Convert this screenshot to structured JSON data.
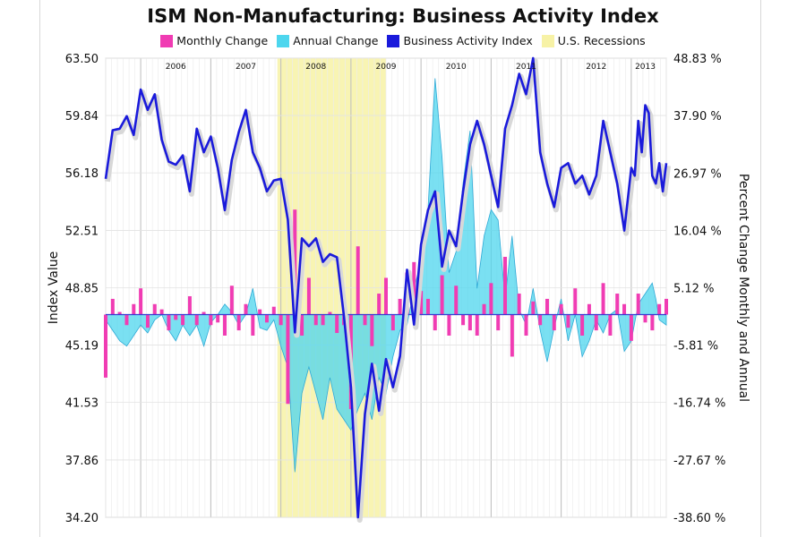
{
  "chart_data": {
    "type": "line",
    "title": "ISM Non-Manufacturing: Business Activity Index",
    "ylabel_left": "Index Value",
    "ylabel_right": "Percent Change Monthly and Annual",
    "left_axis": {
      "ticks": [
        "63.50",
        "59.84",
        "56.18",
        "52.51",
        "48.85",
        "45.19",
        "41.53",
        "37.86",
        "34.20"
      ],
      "min": 34.2,
      "max": 63.5
    },
    "right_axis": {
      "ticks": [
        "48.83 %",
        "37.90 %",
        "26.97 %",
        "16.04 %",
        "5.12 %",
        "-5.81 %",
        "-16.74 %",
        "-27.67 %",
        "-38.60 %"
      ],
      "min": -38.6,
      "max": 48.83
    },
    "x_range": [
      2005.5,
      2013.5
    ],
    "year_labels": [
      {
        "label": "2006",
        "x": 2006.5
      },
      {
        "label": "2007",
        "x": 2007.5
      },
      {
        "label": "2008",
        "x": 2008.5
      },
      {
        "label": "2009",
        "x": 2009.5
      },
      {
        "label": "2010",
        "x": 2010.5
      },
      {
        "label": "2011",
        "x": 2011.5
      },
      {
        "label": "2012",
        "x": 2012.5
      },
      {
        "label": "2013",
        "x": 2013.2
      }
    ],
    "recession": {
      "name": "U.S. Recessions",
      "start": 2007.95,
      "end": 2009.5,
      "color": "#f7f2a6"
    },
    "series": [
      {
        "name": "Business Activity Index",
        "axis": "left",
        "color": "#1a1adb",
        "values": [
          [
            2005.5,
            55.8
          ],
          [
            2005.6,
            58.9
          ],
          [
            2005.7,
            59.0
          ],
          [
            2005.8,
            59.8
          ],
          [
            2005.9,
            58.6
          ],
          [
            2006.0,
            61.5
          ],
          [
            2006.1,
            60.2
          ],
          [
            2006.2,
            61.2
          ],
          [
            2006.3,
            58.3
          ],
          [
            2006.4,
            56.9
          ],
          [
            2006.5,
            56.7
          ],
          [
            2006.6,
            57.3
          ],
          [
            2006.7,
            55.0
          ],
          [
            2006.8,
            59.0
          ],
          [
            2006.9,
            57.5
          ],
          [
            2007.0,
            58.5
          ],
          [
            2007.1,
            56.5
          ],
          [
            2007.2,
            53.8
          ],
          [
            2007.3,
            57.0
          ],
          [
            2007.4,
            58.8
          ],
          [
            2007.5,
            60.2
          ],
          [
            2007.6,
            57.5
          ],
          [
            2007.7,
            56.5
          ],
          [
            2007.8,
            55.0
          ],
          [
            2007.9,
            55.7
          ],
          [
            2008.0,
            55.8
          ],
          [
            2008.1,
            53.2
          ],
          [
            2008.2,
            46.0
          ],
          [
            2008.3,
            52.0
          ],
          [
            2008.4,
            51.5
          ],
          [
            2008.5,
            52.0
          ],
          [
            2008.6,
            50.5
          ],
          [
            2008.7,
            51.0
          ],
          [
            2008.8,
            50.8
          ],
          [
            2008.9,
            47.0
          ],
          [
            2009.0,
            42.5
          ],
          [
            2009.1,
            34.2
          ],
          [
            2009.2,
            40.8
          ],
          [
            2009.3,
            44.0
          ],
          [
            2009.4,
            41.0
          ],
          [
            2009.5,
            44.3
          ],
          [
            2009.6,
            42.5
          ],
          [
            2009.7,
            44.5
          ],
          [
            2009.8,
            50.0
          ],
          [
            2009.9,
            46.5
          ],
          [
            2010.0,
            51.6
          ],
          [
            2010.1,
            53.8
          ],
          [
            2010.2,
            55.0
          ],
          [
            2010.3,
            50.2
          ],
          [
            2010.4,
            52.5
          ],
          [
            2010.5,
            51.5
          ],
          [
            2010.6,
            55.0
          ],
          [
            2010.7,
            58.0
          ],
          [
            2010.8,
            59.5
          ],
          [
            2010.9,
            58.0
          ],
          [
            2011.0,
            56.0
          ],
          [
            2011.1,
            54.0
          ],
          [
            2011.2,
            59.0
          ],
          [
            2011.3,
            60.5
          ],
          [
            2011.4,
            62.5
          ],
          [
            2011.5,
            61.2
          ],
          [
            2011.6,
            63.5
          ],
          [
            2011.7,
            57.5
          ],
          [
            2011.8,
            55.5
          ],
          [
            2011.9,
            54.0
          ],
          [
            2012.0,
            56.5
          ],
          [
            2012.1,
            56.8
          ],
          [
            2012.2,
            55.5
          ],
          [
            2012.3,
            56.0
          ],
          [
            2012.4,
            54.8
          ],
          [
            2012.5,
            56.0
          ],
          [
            2012.6,
            59.5
          ],
          [
            2012.7,
            57.5
          ],
          [
            2012.8,
            55.5
          ],
          [
            2012.9,
            52.5
          ],
          [
            2013.0,
            56.5
          ],
          [
            2013.05,
            56.0
          ],
          [
            2013.1,
            59.5
          ],
          [
            2013.15,
            57.5
          ],
          [
            2013.2,
            60.5
          ],
          [
            2013.25,
            60.0
          ],
          [
            2013.3,
            56.0
          ],
          [
            2013.35,
            55.5
          ],
          [
            2013.4,
            56.8
          ],
          [
            2013.45,
            55.0
          ],
          [
            2013.5,
            56.8
          ]
        ]
      },
      {
        "name": "Annual Change",
        "axis": "right",
        "color": "#4dd6ee",
        "values": [
          [
            2005.5,
            -1.0
          ],
          [
            2005.6,
            -3.0
          ],
          [
            2005.7,
            -5.0
          ],
          [
            2005.8,
            -6.0
          ],
          [
            2005.9,
            -4.0
          ],
          [
            2006.0,
            -2.0
          ],
          [
            2006.1,
            -3.5
          ],
          [
            2006.2,
            -1.0
          ],
          [
            2006.3,
            0.0
          ],
          [
            2006.4,
            -3.0
          ],
          [
            2006.5,
            -5.0
          ],
          [
            2006.6,
            -2.0
          ],
          [
            2006.7,
            -4.0
          ],
          [
            2006.8,
            -2.0
          ],
          [
            2006.9,
            -6.0
          ],
          [
            2007.0,
            -1.5
          ],
          [
            2007.1,
            0.0
          ],
          [
            2007.2,
            2.0
          ],
          [
            2007.3,
            0.5
          ],
          [
            2007.4,
            -2.0
          ],
          [
            2007.5,
            0.0
          ],
          [
            2007.6,
            5.0
          ],
          [
            2007.7,
            -2.5
          ],
          [
            2007.8,
            -3.0
          ],
          [
            2007.9,
            -1.0
          ],
          [
            2008.0,
            -6.0
          ],
          [
            2008.1,
            -10.0
          ],
          [
            2008.2,
            -30.0
          ],
          [
            2008.3,
            -15.0
          ],
          [
            2008.4,
            -10.0
          ],
          [
            2008.5,
            -15.0
          ],
          [
            2008.6,
            -20.0
          ],
          [
            2008.7,
            -12.0
          ],
          [
            2008.8,
            -18.0
          ],
          [
            2008.9,
            -20.0
          ],
          [
            2009.0,
            -22.0
          ],
          [
            2009.1,
            -18.0
          ],
          [
            2009.2,
            -15.0
          ],
          [
            2009.3,
            -20.0
          ],
          [
            2009.4,
            -12.0
          ],
          [
            2009.5,
            -15.0
          ],
          [
            2009.6,
            -8.0
          ],
          [
            2009.7,
            -3.0
          ],
          [
            2009.8,
            -2.0
          ],
          [
            2009.9,
            5.0
          ],
          [
            2010.0,
            10.0
          ],
          [
            2010.1,
            20.0
          ],
          [
            2010.2,
            45.0
          ],
          [
            2010.3,
            30.0
          ],
          [
            2010.4,
            8.0
          ],
          [
            2010.5,
            12.0
          ],
          [
            2010.6,
            25.0
          ],
          [
            2010.7,
            35.0
          ],
          [
            2010.8,
            5.0
          ],
          [
            2010.9,
            15.0
          ],
          [
            2011.0,
            20.0
          ],
          [
            2011.1,
            18.0
          ],
          [
            2011.2,
            3.0
          ],
          [
            2011.3,
            15.0
          ],
          [
            2011.4,
            1.0
          ],
          [
            2011.5,
            -2.0
          ],
          [
            2011.6,
            5.0
          ],
          [
            2011.7,
            -3.0
          ],
          [
            2011.8,
            -9.0
          ],
          [
            2011.9,
            -2.5
          ],
          [
            2012.0,
            3.0
          ],
          [
            2012.1,
            -5.0
          ],
          [
            2012.2,
            0.0
          ],
          [
            2012.3,
            -8.0
          ],
          [
            2012.4,
            -5.0
          ],
          [
            2012.5,
            -1.0
          ],
          [
            2012.6,
            -3.5
          ],
          [
            2012.7,
            0.0
          ],
          [
            2012.8,
            1.0
          ],
          [
            2012.9,
            -7.0
          ],
          [
            2013.0,
            -5.0
          ],
          [
            2013.1,
            2.0
          ],
          [
            2013.2,
            4.0
          ],
          [
            2013.3,
            6.0
          ],
          [
            2013.35,
            3.0
          ],
          [
            2013.4,
            -1.0
          ],
          [
            2013.5,
            -2.0
          ]
        ]
      },
      {
        "name": "Monthly Change",
        "axis": "right",
        "color": "#f03cb3",
        "values": [
          [
            2005.5,
            -12.0
          ],
          [
            2005.6,
            3.0
          ],
          [
            2005.7,
            0.5
          ],
          [
            2005.8,
            -2.0
          ],
          [
            2005.9,
            2.0
          ],
          [
            2006.0,
            5.0
          ],
          [
            2006.1,
            -2.5
          ],
          [
            2006.2,
            2.0
          ],
          [
            2006.3,
            1.0
          ],
          [
            2006.4,
            -3.0
          ],
          [
            2006.5,
            -1.0
          ],
          [
            2006.6,
            -2.0
          ],
          [
            2006.7,
            3.5
          ],
          [
            2006.8,
            -2.0
          ],
          [
            2006.9,
            0.5
          ],
          [
            2007.0,
            -2.0
          ],
          [
            2007.1,
            -1.5
          ],
          [
            2007.2,
            -4.0
          ],
          [
            2007.3,
            5.5
          ],
          [
            2007.4,
            -3.0
          ],
          [
            2007.5,
            2.0
          ],
          [
            2007.6,
            -4.0
          ],
          [
            2007.7,
            1.0
          ],
          [
            2007.8,
            -1.5
          ],
          [
            2007.9,
            1.5
          ],
          [
            2008.0,
            -2.0
          ],
          [
            2008.1,
            -17.0
          ],
          [
            2008.2,
            20.0
          ],
          [
            2008.3,
            -4.0
          ],
          [
            2008.4,
            7.0
          ],
          [
            2008.5,
            -2.0
          ],
          [
            2008.6,
            -2.0
          ],
          [
            2008.7,
            0.5
          ],
          [
            2008.8,
            -3.5
          ],
          [
            2008.9,
            -2.0
          ],
          [
            2009.0,
            -18.0
          ],
          [
            2009.1,
            13.0
          ],
          [
            2009.2,
            -2.0
          ],
          [
            2009.3,
            -6.0
          ],
          [
            2009.4,
            4.0
          ],
          [
            2009.5,
            7.0
          ],
          [
            2009.6,
            -3.0
          ],
          [
            2009.7,
            3.0
          ],
          [
            2009.8,
            8.0
          ],
          [
            2009.9,
            10.0
          ],
          [
            2010.0,
            4.5
          ],
          [
            2010.1,
            3.0
          ],
          [
            2010.2,
            -3.0
          ],
          [
            2010.3,
            7.5
          ],
          [
            2010.4,
            -4.0
          ],
          [
            2010.5,
            5.5
          ],
          [
            2010.6,
            -2.0
          ],
          [
            2010.7,
            -3.0
          ],
          [
            2010.8,
            -4.0
          ],
          [
            2010.9,
            2.0
          ],
          [
            2011.0,
            6.0
          ],
          [
            2011.1,
            -3.0
          ],
          [
            2011.2,
            11.0
          ],
          [
            2011.3,
            -8.0
          ],
          [
            2011.4,
            4.0
          ],
          [
            2011.5,
            -4.0
          ],
          [
            2011.6,
            2.5
          ],
          [
            2011.7,
            -2.0
          ],
          [
            2011.8,
            3.0
          ],
          [
            2011.9,
            -3.0
          ],
          [
            2012.0,
            2.0
          ],
          [
            2012.1,
            -2.5
          ],
          [
            2012.2,
            5.0
          ],
          [
            2012.3,
            -4.0
          ],
          [
            2012.4,
            2.0
          ],
          [
            2012.5,
            -3.0
          ],
          [
            2012.6,
            6.0
          ],
          [
            2012.7,
            -4.0
          ],
          [
            2012.8,
            4.0
          ],
          [
            2012.9,
            2.0
          ],
          [
            2013.0,
            -5.0
          ],
          [
            2013.1,
            4.0
          ],
          [
            2013.2,
            -1.5
          ],
          [
            2013.3,
            -3.0
          ],
          [
            2013.4,
            2.0
          ],
          [
            2013.5,
            3.0
          ]
        ]
      }
    ],
    "legend": {
      "placement": "top-center",
      "items": [
        {
          "label": "Monthly Change",
          "color": "#f03cb3"
        },
        {
          "label": "Annual Change",
          "color": "#4dd6ee"
        },
        {
          "label": "Business Activity Index",
          "color": "#1a1adb"
        },
        {
          "label": "U.S. Recessions",
          "color": "#f7f2a6"
        }
      ]
    },
    "grid": true
  }
}
